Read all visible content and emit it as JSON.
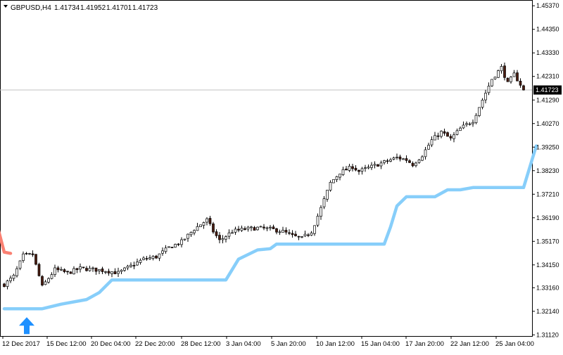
{
  "header": {
    "symbol": "GBPUSD,H4",
    "open": "1.41734",
    "high": "1.41952",
    "low": "1.41701",
    "close": "1.41723"
  },
  "chart_data": {
    "type": "candlestick",
    "symbol": "GBPUSD",
    "timeframe": "H4",
    "y_ticks": [
      "1.45370",
      "1.44350",
      "1.43330",
      "1.42310",
      "1.41290",
      "1.40270",
      "1.39250",
      "1.38230",
      "1.37210",
      "1.36190",
      "1.35170",
      "1.34150",
      "1.33160",
      "1.32140",
      "1.31120"
    ],
    "x_ticks": [
      "12 Dec 2017",
      "15 Dec 12:00",
      "20 Dec 04:00",
      "22 Dec 20:00",
      "28 Dec 12:00",
      "3 Jan 04:00",
      "5 Jan 20:00",
      "10 Jan 12:00",
      "15 Jan 04:00",
      "17 Jan 20:00",
      "22 Jan 12:00",
      "25 Jan 04:00"
    ],
    "ylim": [
      1.3107,
      1.4562
    ],
    "current_price": "1.41723",
    "price_line_color": "#c0c0c0",
    "colors": {
      "bull_body": "#ffffff",
      "bear_body": "#4a1c10",
      "wick": "#000000",
      "trail_up": "#87cefa",
      "trail_down": "#fa8072",
      "signal_arrow": "#1e90ff"
    },
    "signal": {
      "type": "buy-arrow",
      "index": 0
    },
    "close_anchors": [
      [
        0,
        1.333
      ],
      [
        3,
        1.3365
      ],
      [
        6,
        1.3455
      ],
      [
        9,
        1.346
      ],
      [
        12,
        1.332
      ],
      [
        16,
        1.3395
      ],
      [
        20,
        1.338
      ],
      [
        24,
        1.34
      ],
      [
        28,
        1.3395
      ],
      [
        32,
        1.339
      ],
      [
        36,
        1.338
      ],
      [
        40,
        1.341
      ],
      [
        44,
        1.344
      ],
      [
        48,
        1.345
      ],
      [
        52,
        1.349
      ],
      [
        56,
        1.3515
      ],
      [
        60,
        1.357
      ],
      [
        64,
        1.361
      ],
      [
        66,
        1.356
      ],
      [
        68,
        1.352
      ],
      [
        72,
        1.356
      ],
      [
        76,
        1.357
      ],
      [
        80,
        1.3575
      ],
      [
        84,
        1.357
      ],
      [
        88,
        1.356
      ],
      [
        91,
        1.354
      ],
      [
        94,
        1.353
      ],
      [
        97,
        1.356
      ],
      [
        100,
        1.366
      ],
      [
        103,
        1.377
      ],
      [
        106,
        1.3815
      ],
      [
        110,
        1.384
      ],
      [
        112,
        1.382
      ],
      [
        116,
        1.384
      ],
      [
        120,
        1.386
      ],
      [
        124,
        1.388
      ],
      [
        127,
        1.387
      ],
      [
        129,
        1.385
      ],
      [
        132,
        1.389
      ],
      [
        135,
        1.3955
      ],
      [
        138,
        1.399
      ],
      [
        141,
        1.396
      ],
      [
        144,
        1.4005
      ],
      [
        148,
        1.404
      ],
      [
        151,
        1.413
      ],
      [
        154,
        1.422
      ],
      [
        157,
        1.427
      ],
      [
        159,
        1.42
      ],
      [
        161,
        1.424
      ],
      [
        164,
        1.4175
      ]
    ],
    "trail_line": [
      [
        0,
        1.3225
      ],
      [
        12,
        1.3225
      ],
      [
        18,
        1.3245
      ],
      [
        26,
        1.3265
      ],
      [
        30,
        1.3295
      ],
      [
        34,
        1.335
      ],
      [
        70,
        1.335
      ],
      [
        74,
        1.344
      ],
      [
        80,
        1.348
      ],
      [
        84,
        1.3485
      ],
      [
        86,
        1.3505
      ],
      [
        120,
        1.3505
      ],
      [
        122,
        1.358
      ],
      [
        124,
        1.367
      ],
      [
        127,
        1.371
      ],
      [
        136,
        1.371
      ],
      [
        140,
        1.374
      ],
      [
        144,
        1.374
      ],
      [
        148,
        1.375
      ],
      [
        164,
        1.375
      ],
      [
        168,
        1.393
      ]
    ],
    "trail_down_line": [
      [
        -4,
        1.3575
      ],
      [
        -2,
        1.3575
      ],
      [
        0,
        1.347
      ],
      [
        2,
        1.3465
      ]
    ]
  }
}
